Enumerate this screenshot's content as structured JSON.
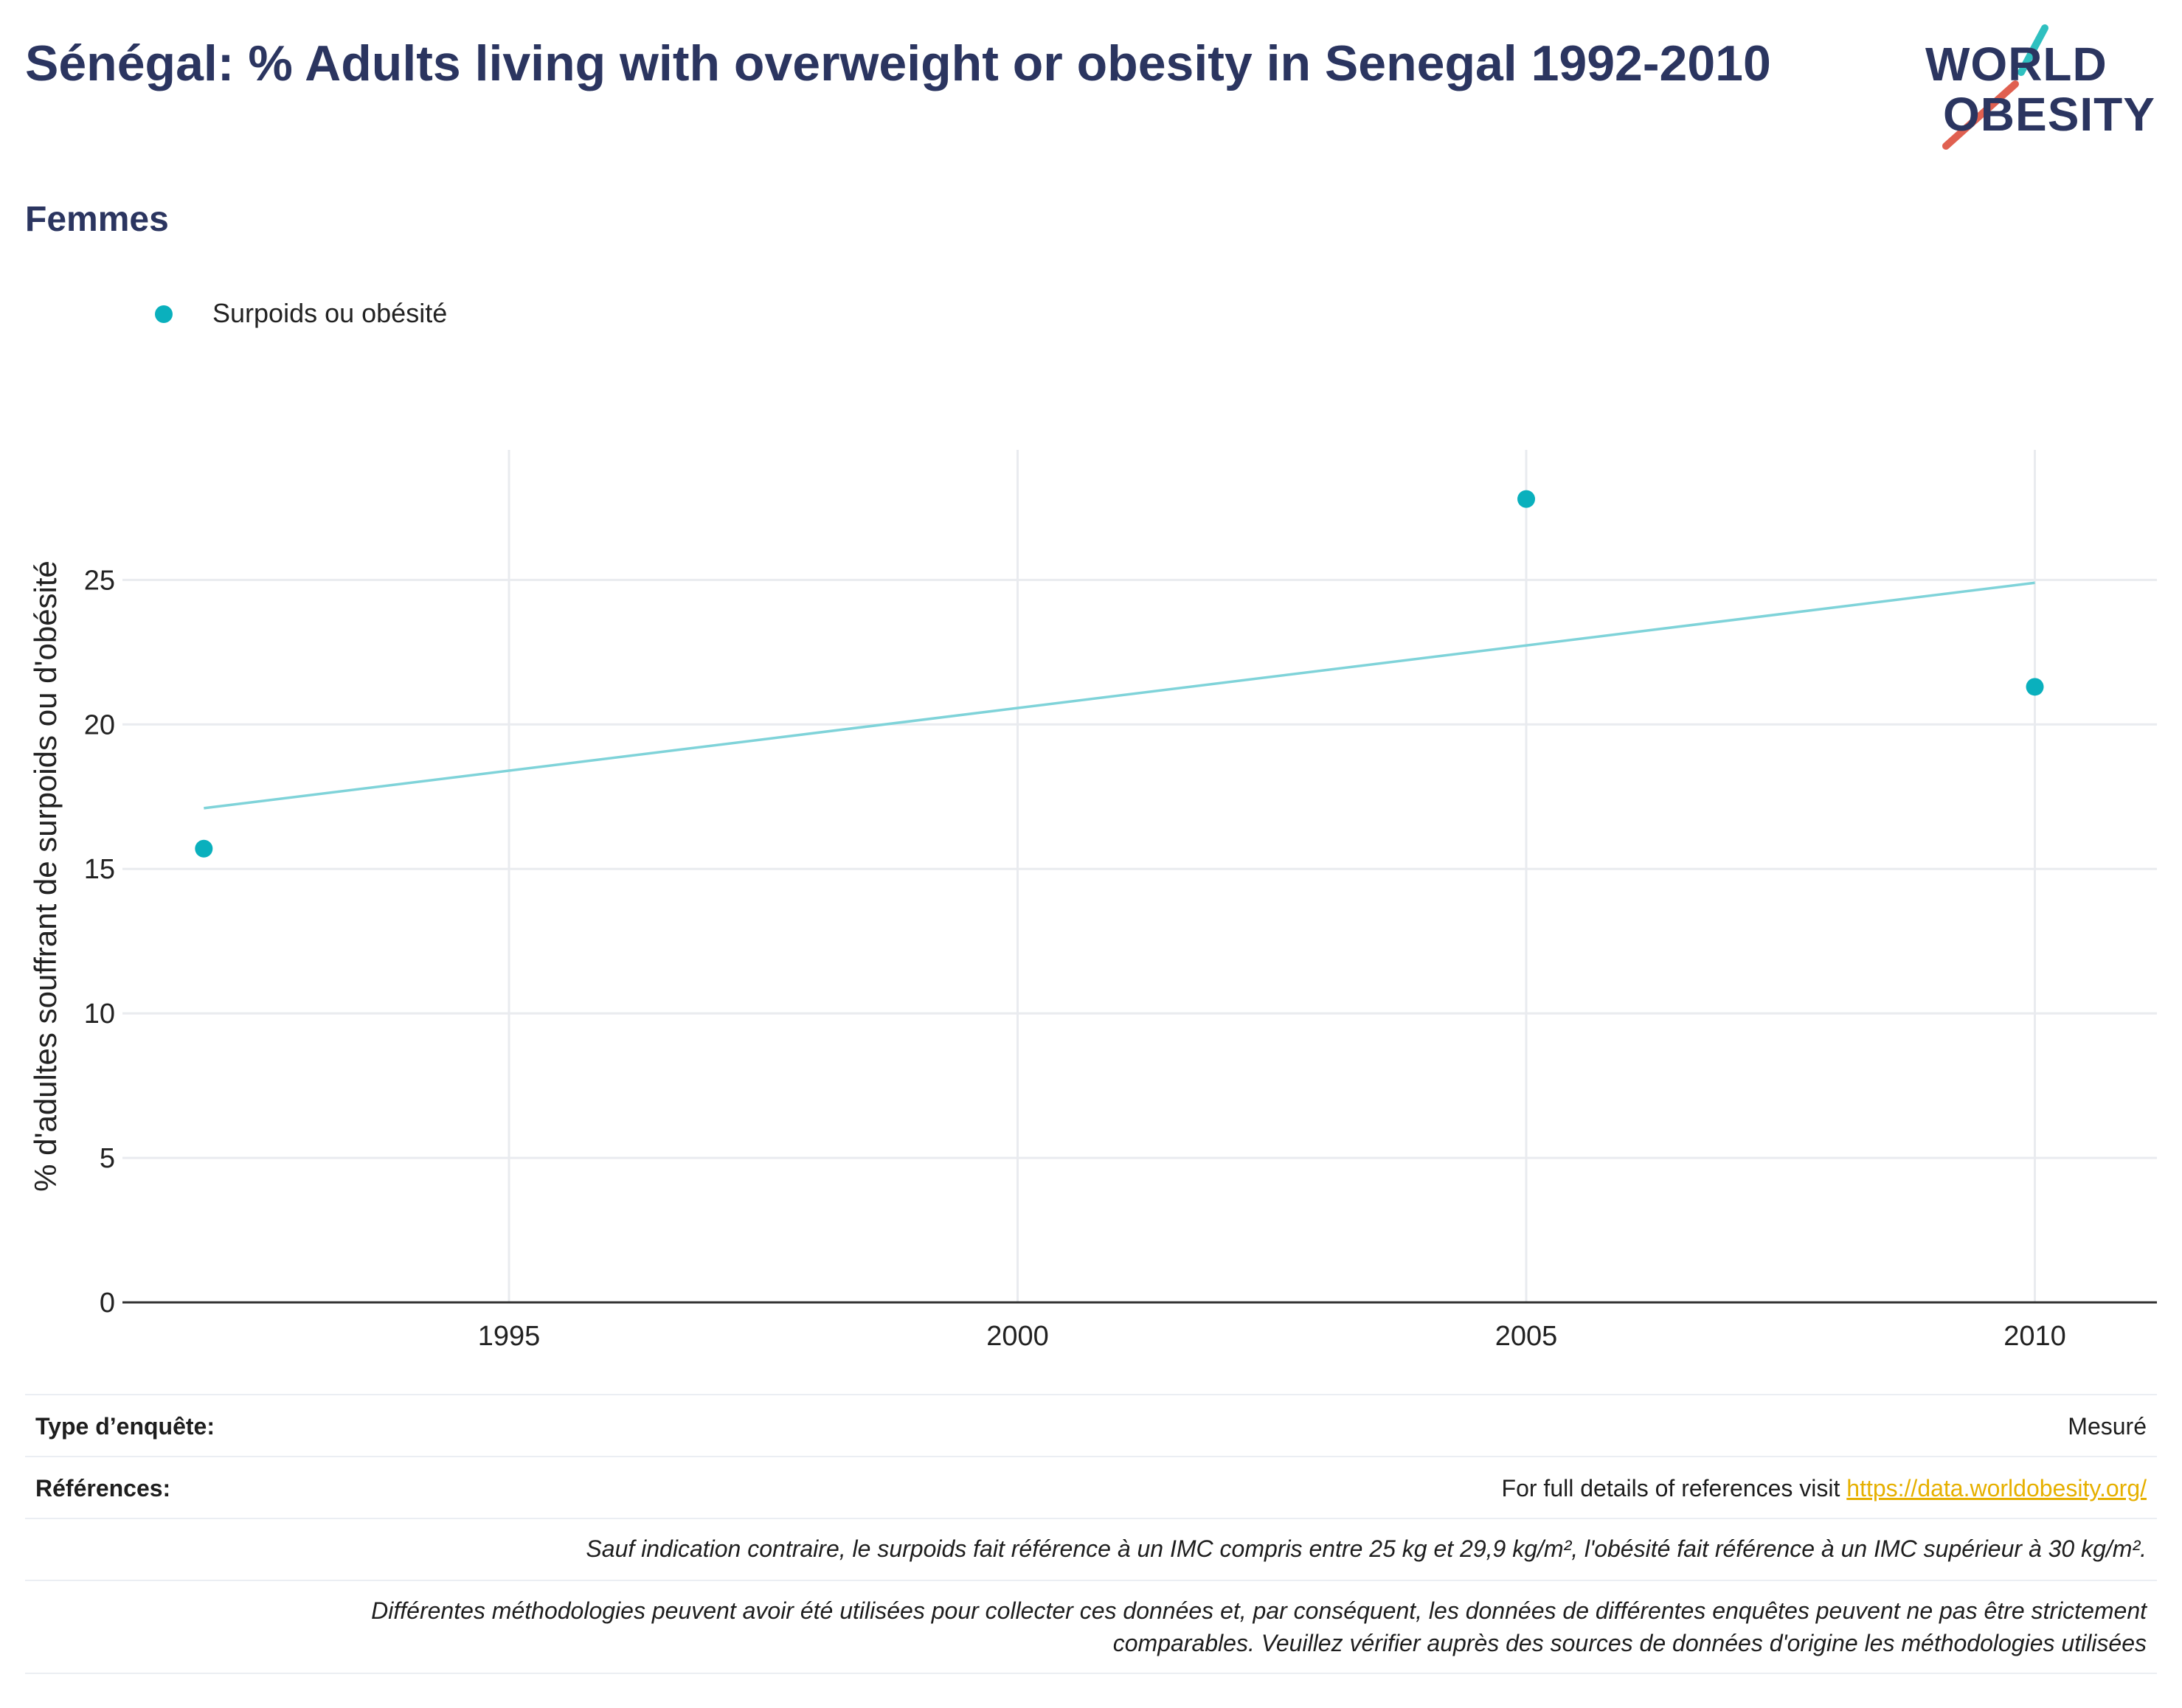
{
  "title": "Sénégal: % Adults living with overweight or obesity in Senegal 1992-2010",
  "subtitle": "Femmes",
  "logo": {
    "line1": "WORLD",
    "line2": "OBESITY"
  },
  "colors": {
    "series": "#0ab0bd",
    "trend": "#7fd3d9",
    "title": "#2b3560",
    "link": "#e6b000"
  },
  "chart_data": {
    "type": "scatter",
    "ylabel": "% d'adultes souffrant de surpoids ou d'obésité",
    "xlim": [
      1991.2,
      2011.2
    ],
    "ylim": [
      0,
      29.5
    ],
    "xticks": [
      1995,
      2000,
      2005,
      2010
    ],
    "yticks": [
      0,
      5,
      10,
      15,
      20,
      25
    ],
    "grid": true,
    "legend_position": "top-left",
    "series": [
      {
        "name": "Surpoids ou obésité",
        "points": [
          {
            "x": 1992,
            "y": 15.7
          },
          {
            "x": 2005,
            "y": 27.8
          },
          {
            "x": 2010,
            "y": 21.3
          }
        ]
      }
    ],
    "trend_line": {
      "start": {
        "x": 1992,
        "y": 17.1
      },
      "end": {
        "x": 2010,
        "y": 24.9
      }
    }
  },
  "footer": {
    "survey_label": "Type d’enquête:",
    "survey_value": "Mesuré",
    "refs_label": "Références:",
    "refs_text": "For full details of references visit ",
    "refs_link": "https://data.worldobesity.org/",
    "note1": "Sauf indication contraire, le surpoids fait référence à un IMC compris entre 25 kg et 29,9 kg/m², l'obésité fait référence à un IMC supérieur à 30 kg/m².",
    "note2_line1": "Différentes méthodologies peuvent avoir été utilisées pour collecter ces données et, par conséquent, les données de différentes enquêtes peuvent ne pas être strictement",
    "note2_line2": "comparables. Veuillez vérifier auprès des sources de données d'origine les méthodologies utilisées"
  }
}
